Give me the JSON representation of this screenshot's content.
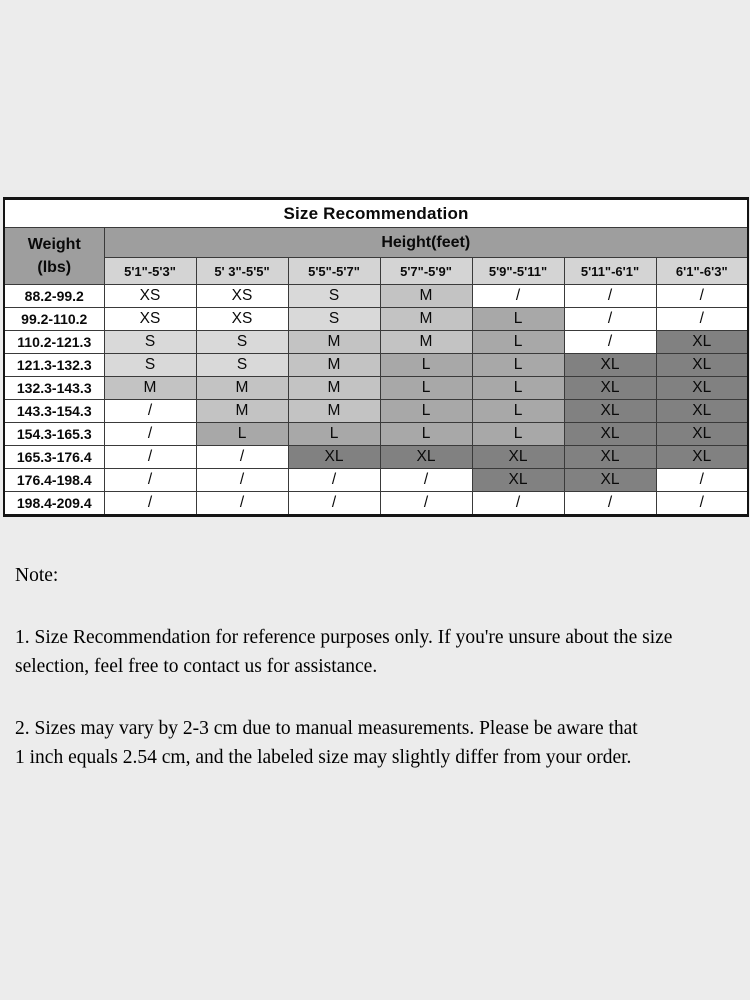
{
  "page": {
    "background": "#ececec"
  },
  "table": {
    "title": "Size Recommendation",
    "weight_header": {
      "line1": "Weight",
      "line2": "(lbs)"
    },
    "height_header": "Height(feet)",
    "height_columns": [
      "5'1\"-5'3\"",
      "5' 3\"-5'5\"",
      "5'5\"-5'7\"",
      "5'7\"-5'9\"",
      "5'9\"-5'11\"",
      "5'11\"-6'1\"",
      "6'1\"-6'3\""
    ],
    "rows": [
      {
        "weight": "88.2-99.2",
        "sizes": [
          "XS",
          "XS",
          "S",
          "M",
          "/",
          "/",
          "/"
        ]
      },
      {
        "weight": "99.2-110.2",
        "sizes": [
          "XS",
          "XS",
          "S",
          "M",
          "L",
          "/",
          "/"
        ]
      },
      {
        "weight": "110.2-121.3",
        "sizes": [
          "S",
          "S",
          "M",
          "M",
          "L",
          "/",
          "XL"
        ]
      },
      {
        "weight": "121.3-132.3",
        "sizes": [
          "S",
          "S",
          "M",
          "L",
          "L",
          "XL",
          "XL"
        ]
      },
      {
        "weight": "132.3-143.3",
        "sizes": [
          "M",
          "M",
          "M",
          "L",
          "L",
          "XL",
          "XL"
        ]
      },
      {
        "weight": "143.3-154.3",
        "sizes": [
          "/",
          "M",
          "M",
          "L",
          "L",
          "XL",
          "XL"
        ]
      },
      {
        "weight": "154.3-165.3",
        "sizes": [
          "/",
          "L",
          "L",
          "L",
          "L",
          "XL",
          "XL"
        ]
      },
      {
        "weight": "165.3-176.4",
        "sizes": [
          "/",
          "/",
          "XL",
          "XL",
          "XL",
          "XL",
          "XL"
        ]
      },
      {
        "weight": "176.4-198.4",
        "sizes": [
          "/",
          "/",
          "/",
          "/",
          "XL",
          "XL",
          "/"
        ]
      },
      {
        "weight": "198.4-209.4",
        "sizes": [
          "/",
          "/",
          "/",
          "/",
          "/",
          "/",
          "/"
        ]
      }
    ]
  },
  "colors": {
    "page_bg": "#ececec",
    "header_bg": "#9e9e9e",
    "subheader_bg": "#d4d4d4",
    "size_fill": {
      "XS": "#ffffff",
      "S": "#d9d9d9",
      "M": "#c3c3c3",
      "L": "#a8a8a8",
      "XL": "#818181",
      "/": "#ffffff"
    }
  },
  "notes": {
    "heading": "Note:",
    "items": [
      "1. Size Recommendation for reference purposes only. If you're unsure about the size\nselection, feel free to contact us for assistance.",
      "2. Sizes may vary by 2-3 cm due to manual measurements. Please be aware that\n1 inch equals 2.54 cm, and the labeled size may slightly differ from your order."
    ]
  }
}
